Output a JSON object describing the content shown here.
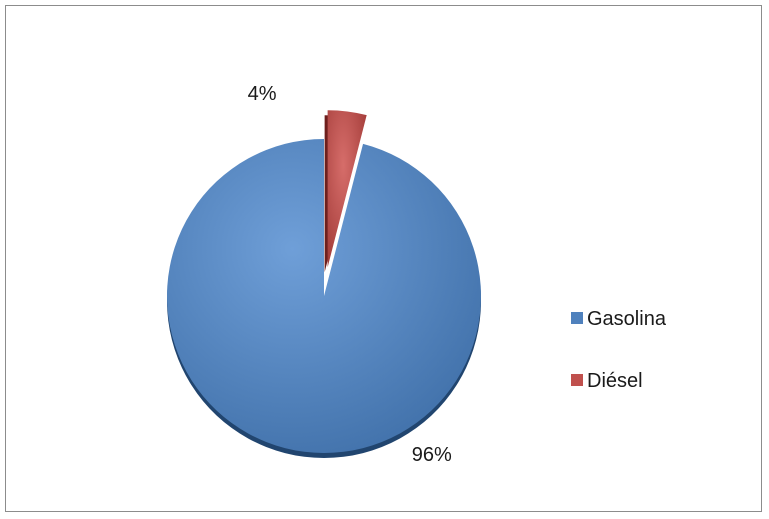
{
  "chart_data": {
    "type": "pie",
    "title": "",
    "categories": [
      "Gasolina",
      "Diésel"
    ],
    "values": [
      96,
      4
    ],
    "data_labels": [
      "96%",
      "4%"
    ],
    "colors": [
      "#4f81bd",
      "#c0504d"
    ],
    "exploded": [
      "Diésel"
    ],
    "legend_position": "right",
    "style": "3d-like shadowed pie"
  }
}
